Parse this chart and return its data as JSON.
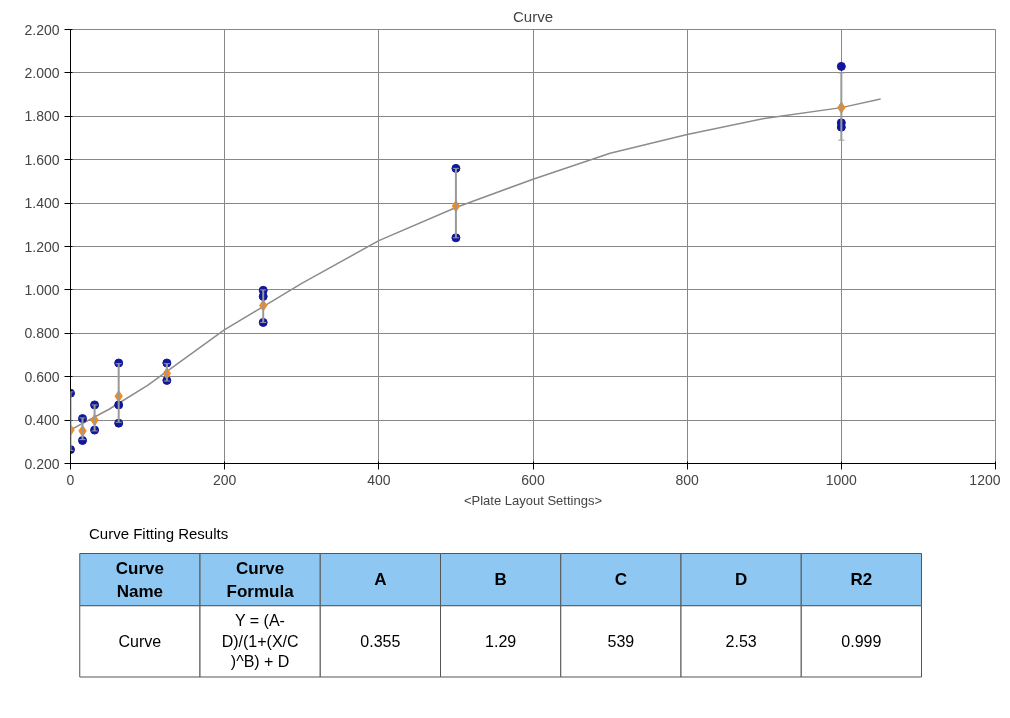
{
  "chart_data": [
    {
      "type": "scatter",
      "title": "Curve",
      "xlabel": "<Plate Layout Settings>",
      "xlim": [
        0,
        1200
      ],
      "xticks": [
        0,
        200,
        400,
        600,
        800,
        1000,
        1200
      ],
      "ylim": [
        0.2,
        2.2
      ],
      "yticks": [
        {
          "value": 0.2,
          "label": "0.200"
        },
        {
          "value": 0.4,
          "label": "0.400"
        },
        {
          "value": 0.6,
          "label": "0.600"
        },
        {
          "value": 0.8,
          "label": "0.800"
        },
        {
          "value": 1.0,
          "label": "1.000"
        },
        {
          "value": 1.2,
          "label": "1.200"
        },
        {
          "value": 1.4,
          "label": "1.400"
        },
        {
          "value": 1.6,
          "label": "1.600"
        },
        {
          "value": 1.8,
          "label": "1.800"
        },
        {
          "value": 2.0,
          "label": "2.000"
        },
        {
          "value": 2.2,
          "label": "2.200"
        }
      ],
      "grid": true,
      "series": [
        {
          "type": "line",
          "color": "#8c8c8c",
          "marker": "none",
          "x": [
            0,
            50,
            100,
            200,
            300,
            400,
            500,
            600,
            700,
            800,
            900,
            1000,
            1051
          ],
          "values": [
            0.355,
            0.45,
            0.56,
            0.817,
            1.03,
            1.227,
            1.38,
            1.51,
            1.63,
            1.716,
            1.79,
            1.84,
            1.88
          ]
        },
        {
          "type": "scatter",
          "color": "#10179b",
          "marker": "circle",
          "x": [
            0,
            0,
            15.6,
            15.6,
            31.25,
            31.25,
            62.5,
            62.5,
            62.5,
            125,
            125,
            250,
            250,
            250,
            500,
            500,
            1000,
            1000,
            1000
          ],
          "values": [
            0.524,
            0.264,
            0.407,
            0.306,
            0.47,
            0.354,
            0.663,
            0.47,
            0.386,
            0.663,
            0.583,
            0.998,
            0.97,
            0.85,
            1.56,
            1.24,
            2.03,
            1.77,
            1.75
          ]
        },
        {
          "type": "scatter",
          "color": "#f08a24",
          "marker": "diamond",
          "x": [
            0,
            15.6,
            31.25,
            62.5,
            125,
            250,
            500,
            1000
          ],
          "values": [
            0.354,
            0.35,
            0.4,
            0.51,
            0.615,
            0.928,
            1.386,
            1.84
          ],
          "errors": [
            [
              0.26,
              0.53
            ],
            [
              0.31,
              0.41
            ],
            [
              0.35,
              0.47
            ],
            [
              0.39,
              0.66
            ],
            [
              0.58,
              0.66
            ],
            [
              0.85,
              1.0
            ],
            [
              1.24,
              1.56
            ],
            [
              1.69,
              2.0
            ]
          ]
        }
      ]
    },
    {
      "type": "other",
      "title": "Curve Fitting Results",
      "annotations": [
        "Curve\nName",
        "Curve\nFormula",
        "A",
        "B",
        "C",
        "D",
        "R2",
        "Curve",
        "Y = (A-\nD)/(1+(X/C\n)^B) + D",
        "0.355",
        "1.29",
        "539",
        "2.53",
        "0.999"
      ]
    }
  ]
}
